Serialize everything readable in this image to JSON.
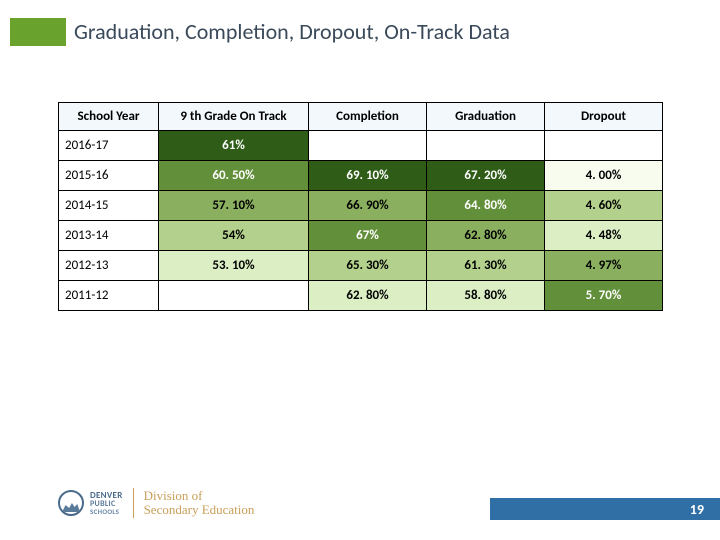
{
  "title": "Graduation, Completion, Dropout, On-Track Data",
  "table": {
    "columns": [
      "School Year",
      "9 th Grade On Track",
      "Completion",
      "Graduation",
      "Dropout"
    ],
    "colors": {
      "header_bg": "#f2f8fc",
      "ontrack_gradient": [
        "#2f5c17",
        "#628f3a",
        "#8ab05f",
        "#b3d18c",
        "#dbeec4",
        "#f7fcef"
      ],
      "completion_gradient": [
        "#2f5c17",
        "#628f3a",
        "#8ab05f",
        "#b3d18c",
        "#dbeec4",
        "#f7fcef"
      ],
      "graduation_gradient": [
        "#2f5c17",
        "#628f3a",
        "#8ab05f",
        "#b3d18c",
        "#dbeec4",
        "#f7fcef"
      ],
      "dropout_gradient": [
        "#2f5c17",
        "#628f3a",
        "#8ab05f",
        "#b3d18c",
        "#dbeec4",
        "#f7fcef"
      ],
      "text_light": "#ffffff",
      "text_dark": "#000000"
    },
    "rows": [
      {
        "year": "2016-17",
        "ontrack": "61%",
        "completion": "",
        "graduation": "",
        "dropout": "",
        "ontrack_rank": 0,
        "completion_rank": null,
        "graduation_rank": null,
        "dropout_rank": null
      },
      {
        "year": "2015-16",
        "ontrack": "60. 50%",
        "completion": "69. 10%",
        "graduation": "67. 20%",
        "dropout": "4. 00%",
        "ontrack_rank": 1,
        "completion_rank": 0,
        "graduation_rank": 0,
        "dropout_rank": 5
      },
      {
        "year": "2014-15",
        "ontrack": "57. 10%",
        "completion": "66. 90%",
        "graduation": "64. 80%",
        "dropout": "4. 60%",
        "ontrack_rank": 2,
        "completion_rank": 2,
        "graduation_rank": 1,
        "dropout_rank": 3
      },
      {
        "year": "2013-14",
        "ontrack": "54%",
        "completion": "67%",
        "graduation": "62. 80%",
        "dropout": "4. 48%",
        "ontrack_rank": 3,
        "completion_rank": 1,
        "graduation_rank": 2,
        "dropout_rank": 4
      },
      {
        "year": "2012-13",
        "ontrack": "53. 10%",
        "completion": "65. 30%",
        "graduation": "61. 30%",
        "dropout": "4. 97%",
        "ontrack_rank": 4,
        "completion_rank": 3,
        "graduation_rank": 3,
        "dropout_rank": 2
      },
      {
        "year": "2011-12",
        "ontrack": "",
        "completion": "62. 80%",
        "graduation": "58. 80%",
        "dropout": "5. 70%",
        "ontrack_rank": null,
        "completion_rank": 4,
        "graduation_rank": 4,
        "dropout_rank": 1
      }
    ]
  },
  "logo": {
    "line1": "DENVER",
    "line2": "PUBLIC",
    "line3": "SCHOOLS",
    "division_l1": "Division of",
    "division_l2": "Secondary Education"
  },
  "page_number": "19"
}
